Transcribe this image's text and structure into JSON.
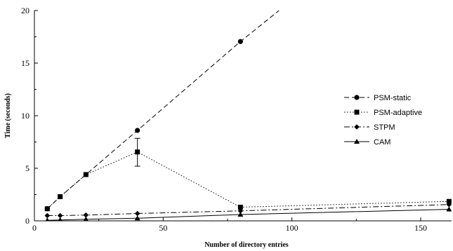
{
  "chart_data": {
    "type": "line",
    "title": "",
    "xlabel": "Number of directory entries",
    "ylabel": "Time (seconds)",
    "xlim": [
      0,
      162
    ],
    "ylim": [
      0,
      20
    ],
    "xticks": [
      0,
      50,
      100,
      150
    ],
    "yticks": [
      0,
      5,
      10,
      15,
      20
    ],
    "grid": false,
    "legend_position": "right",
    "series": [
      {
        "name": "PSM-static",
        "marker": "circle",
        "dash": "dashed",
        "x": [
          5,
          10,
          20,
          40,
          80
        ],
        "y": [
          1.15,
          2.3,
          4.4,
          8.6,
          17.05
        ],
        "trend_to": [
          95,
          20
        ]
      },
      {
        "name": "PSM-adaptive",
        "marker": "square",
        "dash": "dotted",
        "x": [
          5,
          10,
          20,
          40,
          80,
          161
        ],
        "y": [
          1.15,
          2.3,
          4.4,
          6.55,
          1.3,
          1.85
        ],
        "error_bars": [
          {
            "x": 40,
            "low": 5.2,
            "high": 7.85
          }
        ]
      },
      {
        "name": "STPM",
        "marker": "diamond",
        "dash": "dashdot",
        "x": [
          5,
          10,
          20,
          40,
          80,
          161
        ],
        "y": [
          0.5,
          0.5,
          0.55,
          0.7,
          0.95,
          1.55
        ]
      },
      {
        "name": "CAM",
        "marker": "triangle",
        "dash": "solid",
        "x": [
          5,
          10,
          20,
          40,
          80,
          161
        ],
        "y": [
          0.05,
          0.08,
          0.15,
          0.25,
          0.6,
          1.1
        ]
      }
    ]
  }
}
